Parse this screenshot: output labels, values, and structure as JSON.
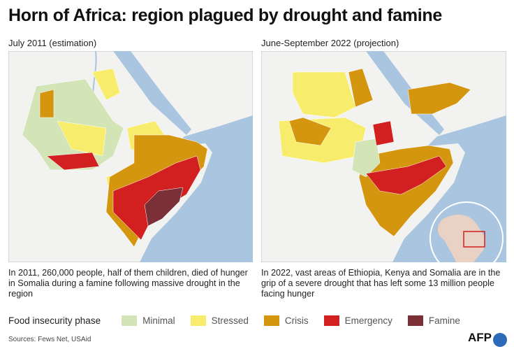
{
  "title": "Horn of Africa: region plagued by drought and famine",
  "maps": [
    {
      "subtitle": "July 2011 (estimation)",
      "caption": "In 2011, 260,000 people, half of them children, died of hunger in Somalia during a famine following massive drought in the region"
    },
    {
      "subtitle": "June-September 2022 (projection)",
      "caption": "In 2022, vast areas of Ethiopia, Kenya and Somalia are in the grip of a severe drought that has left some 13 million people facing hunger"
    }
  ],
  "legend": {
    "title": "Food insecurity phase",
    "items": [
      {
        "label": "Minimal",
        "color": "#d3e4b7"
      },
      {
        "label": "Stressed",
        "color": "#f8ec6c"
      },
      {
        "label": "Crisis",
        "color": "#d4950f"
      },
      {
        "label": "Emergency",
        "color": "#d21f1f"
      },
      {
        "label": "Famine",
        "color": "#7b2f37"
      }
    ]
  },
  "source": "Sources: Fews Net, USAid",
  "logo": "AFP"
}
